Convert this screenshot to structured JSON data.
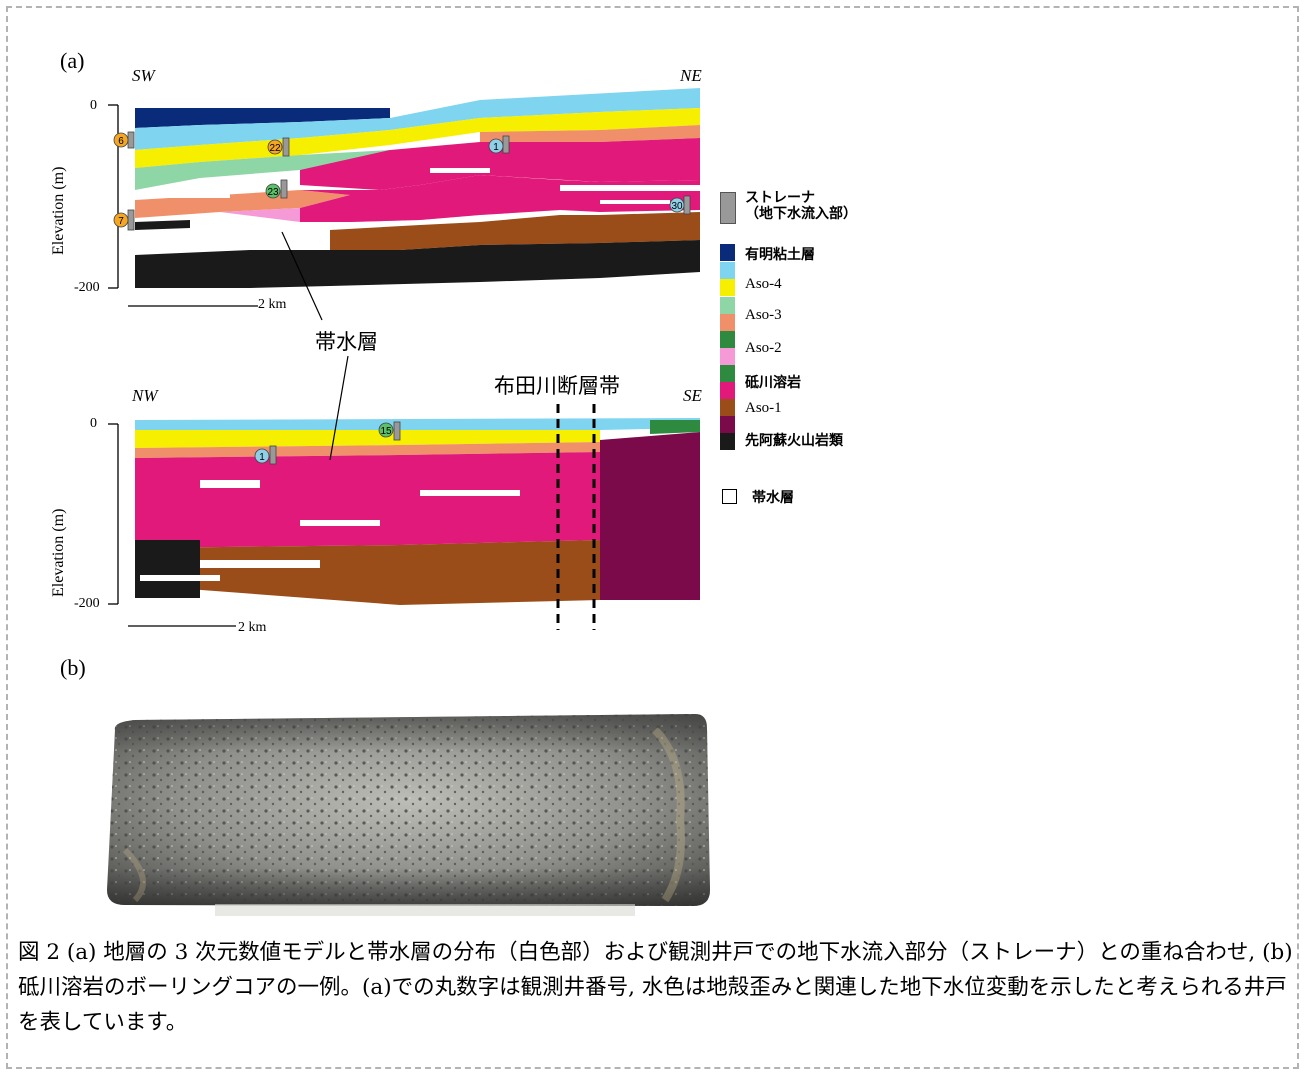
{
  "figure": {
    "panel_a_label": "(a)",
    "panel_b_label": "(b)",
    "section1": {
      "dir_left": "SW",
      "dir_right": "NE",
      "tick_top": "0",
      "tick_bottom": "-200",
      "y_label": "Elevation (m)",
      "scale_label": "2 km",
      "wells": [
        "6",
        "22",
        "1",
        "23",
        "7",
        "30"
      ]
    },
    "section2": {
      "dir_left": "NW",
      "dir_right": "SE",
      "tick_top": "0",
      "tick_bottom": "-200",
      "y_label": "Elevation (m)",
      "scale_label": "2 km",
      "wells": [
        "15",
        "1"
      ]
    },
    "annotation_aquifer": "帯水層",
    "annotation_fault": "布田川断層帯"
  },
  "legend": {
    "strainer": "ストレーナ\n（地下水流入部）",
    "items": [
      {
        "label": "有明粘土層",
        "color": "#0a2a7a",
        "bold": true
      },
      {
        "label": "Aso-4",
        "color": "#7fd4f0",
        "bold": false
      },
      {
        "label": "Aso-4",
        "color": "#f7ef00",
        "bold": false,
        "dup": true
      },
      {
        "label": "Aso-3",
        "color": "#8fd6a6",
        "bold": false
      },
      {
        "label": "Aso-3",
        "color": "#f0906a",
        "bold": false,
        "dup": true
      },
      {
        "label": "Aso-2",
        "color": "#2e8a3e",
        "bold": false
      },
      {
        "label": "Aso-2",
        "color": "#f59ad6",
        "bold": false,
        "dup": true
      },
      {
        "label": "砥川溶岩",
        "color": "#e0197a",
        "bold": true
      },
      {
        "label": "Aso-1",
        "color": "#9a4d18",
        "bold": false
      },
      {
        "label": "先阿蘇火山岩類",
        "color": "#1a1a1a",
        "bold": true
      }
    ],
    "aquifer": "帯水層"
  },
  "caption": "図 2 (a) 地層の 3 次元数値モデルと帯水層の分布（白色部）および観測井戸での地下水流入部分（ストレーナ）との重ね合わせ, (b) 砥川溶岩のボーリングコアの一例。(a)での丸数字は観測井番号, 水色は地殻歪みと関連した地下水位変動を示したと考えられる井戸を表しています。"
}
